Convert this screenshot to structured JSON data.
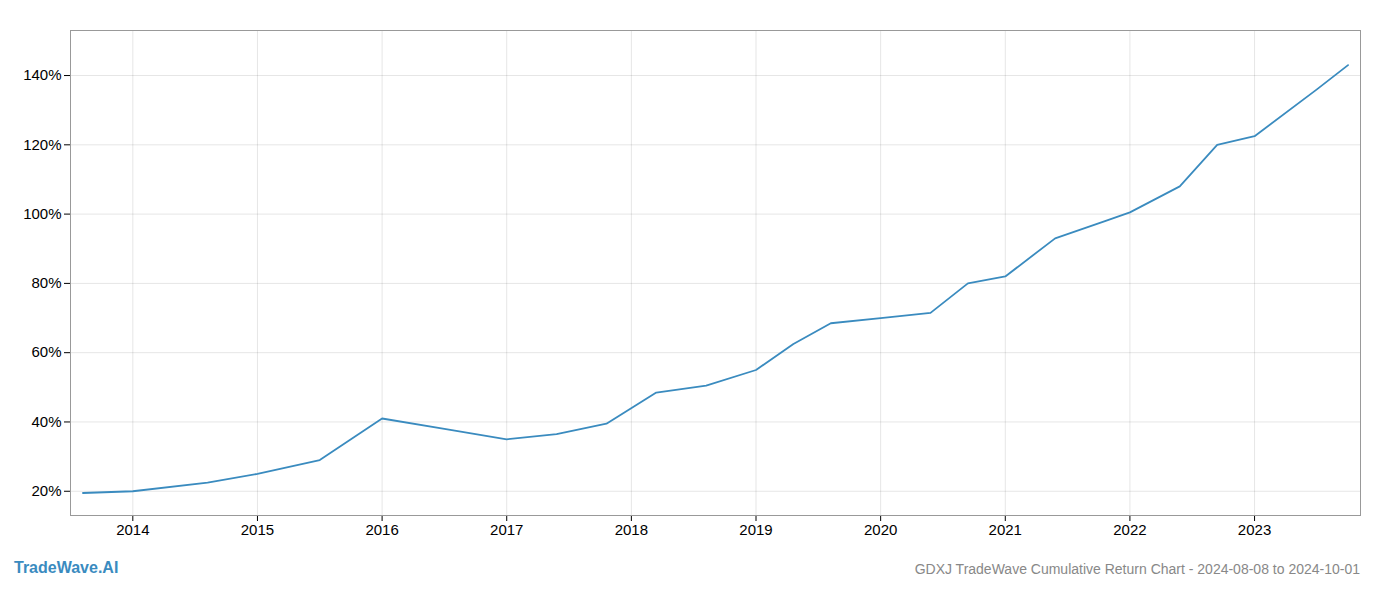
{
  "chart_data": {
    "type": "line",
    "title": "GDXJ TradeWave Cumulative Return Chart - 2024-08-08 to 2024-10-01",
    "annotations": [
      "TradeWave.AI"
    ],
    "x": [
      2013.6,
      2014.0,
      2014.6,
      2015.0,
      2015.5,
      2016.0,
      2016.5,
      2017.0,
      2017.4,
      2017.8,
      2018.2,
      2018.6,
      2019.0,
      2019.3,
      2019.6,
      2020.0,
      2020.4,
      2020.7,
      2021.0,
      2021.4,
      2021.8,
      2022.0,
      2022.4,
      2022.7,
      2023.0,
      2023.5,
      2023.75
    ],
    "values": [
      19.5,
      20.0,
      22.5,
      25.0,
      29.0,
      41.0,
      38.0,
      35.0,
      36.5,
      39.5,
      48.5,
      50.5,
      55.0,
      62.5,
      68.5,
      70.0,
      71.5,
      80.0,
      82.0,
      93.0,
      98.0,
      100.5,
      108.0,
      120.0,
      122.5,
      136.0,
      143.0
    ],
    "color": "#3a8bbf",
    "xlim": [
      2013.5,
      2023.85
    ],
    "ylim": [
      13,
      153
    ],
    "xticks": [
      2014,
      2015,
      2016,
      2017,
      2018,
      2019,
      2020,
      2021,
      2022,
      2023
    ],
    "yticks": [
      {
        "value": 20,
        "label": "20%"
      },
      {
        "value": 40,
        "label": "40%"
      },
      {
        "value": 60,
        "label": "60%"
      },
      {
        "value": 80,
        "label": "80%"
      },
      {
        "value": 100,
        "label": "100%"
      },
      {
        "value": 120,
        "label": "120%"
      },
      {
        "value": 140,
        "label": "140%"
      }
    ],
    "grid": true
  }
}
